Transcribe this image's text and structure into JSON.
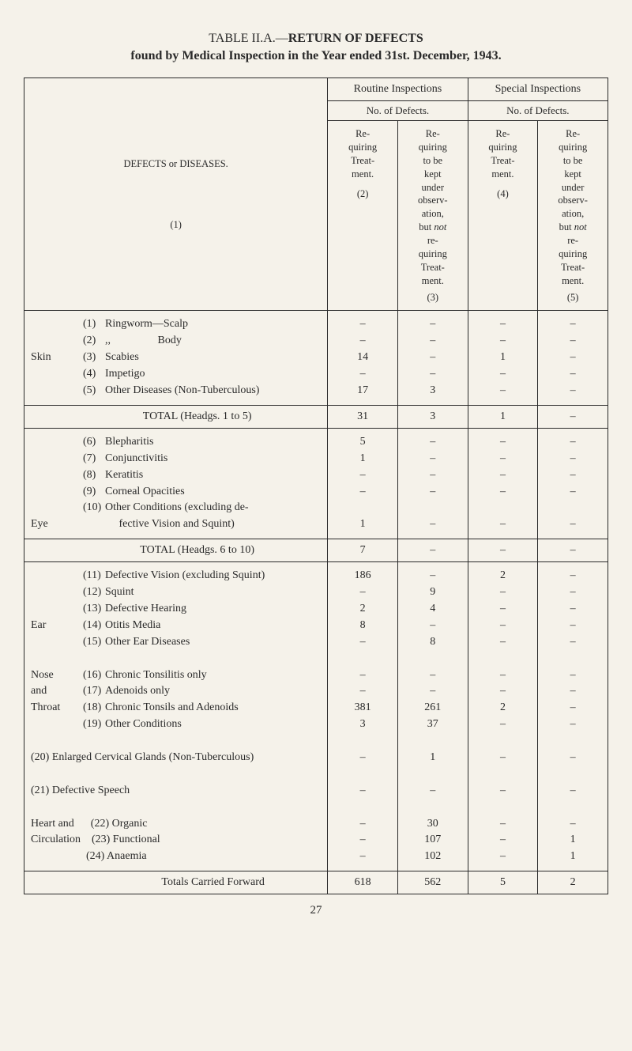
{
  "title": {
    "line1_prefix": "TABLE II.A.—",
    "line1_bold": "RETURN OF DEFECTS",
    "line2": "found by Medical Inspection in the Year ended 31st. December, 1943."
  },
  "headers": {
    "routine": "Routine Inspections",
    "special": "Special Inspections",
    "no_of_defects": "No. of Defects.",
    "desc_title": "DEFECTS or DISEASES.",
    "col1_num": "(1)",
    "col2": "Requiring Treatment.",
    "col2_num": "(2)",
    "col3": "Requiring to be kept under observation, but not requiring Treatment.",
    "col3_num": "(3)",
    "col4": "Requiring Treatment.",
    "col4_num": "(4)",
    "col5": "Requiring to be kept under observation, but not requiring Treatment.",
    "col5_num": "(5)"
  },
  "rows": [
    {
      "label": "",
      "num": "(1)",
      "name": "Ringworm—Scalp",
      "v": [
        "–",
        "–",
        "–",
        "–"
      ]
    },
    {
      "label": "",
      "num": "(2)",
      "name": ",,                 Body",
      "v": [
        "–",
        "–",
        "–",
        "–"
      ]
    },
    {
      "label": "Skin",
      "num": "(3)",
      "name": "Scabies",
      "v": [
        "14",
        "–",
        "1",
        "–"
      ]
    },
    {
      "label": "",
      "num": "(4)",
      "name": "Impetigo",
      "v": [
        "–",
        "–",
        "–",
        "–"
      ]
    },
    {
      "label": "",
      "num": "(5)",
      "name": "Other Diseases (Non-Tuberculous)",
      "v": [
        "17",
        "3",
        "–",
        "–"
      ]
    }
  ],
  "total1": {
    "label": "TOTAL (Headgs. 1 to 5)",
    "v": [
      "31",
      "3",
      "1",
      "–"
    ]
  },
  "rows2": [
    {
      "label": "",
      "num": "(6)",
      "name": "Blepharitis",
      "v": [
        "5",
        "–",
        "–",
        "–"
      ]
    },
    {
      "label": "",
      "num": "(7)",
      "name": "Conjunctivitis",
      "v": [
        "1",
        "–",
        "–",
        "–"
      ]
    },
    {
      "label": "",
      "num": "(8)",
      "name": "Keratitis",
      "v": [
        "–",
        "–",
        "–",
        "–"
      ]
    },
    {
      "label": "",
      "num": "(9)",
      "name": "Corneal Opacities",
      "v": [
        "–",
        "–",
        "–",
        "–"
      ]
    },
    {
      "label": "",
      "num": "(10)",
      "name": "Other Conditions (excluding de-",
      "v": [
        "",
        "",
        "",
        ""
      ]
    },
    {
      "label": "Eye",
      "num": "",
      "name": "     fective Vision and Squint)",
      "v": [
        "1",
        "–",
        "–",
        "–"
      ]
    }
  ],
  "total2": {
    "label": "TOTAL (Headgs. 6 to 10)",
    "v": [
      "7",
      "–",
      "–",
      "–"
    ]
  },
  "rows3": [
    {
      "label": "",
      "num": "(11)",
      "name": "Defective Vision (excluding Squint)",
      "v": [
        "186",
        "–",
        "2",
        "–"
      ]
    },
    {
      "label": "",
      "num": "(12)",
      "name": "Squint",
      "v": [
        "–",
        "9",
        "–",
        "–"
      ]
    },
    {
      "label": "",
      "num": "(13)",
      "name": "Defective Hearing",
      "v": [
        "2",
        "4",
        "–",
        "–"
      ]
    },
    {
      "label": "Ear",
      "num": "(14)",
      "name": "Otitis Media",
      "v": [
        "8",
        "–",
        "–",
        "–"
      ]
    },
    {
      "label": "",
      "num": "(15)",
      "name": "Other Ear Diseases",
      "v": [
        "–",
        "8",
        "–",
        "–"
      ]
    },
    {
      "label": "",
      "num": "",
      "name": "",
      "v": [
        "",
        "",
        "",
        ""
      ]
    },
    {
      "label": "Nose",
      "num": "(16)",
      "name": "Chronic Tonsilitis only",
      "v": [
        "–",
        "–",
        "–",
        "–"
      ]
    },
    {
      "label": "and",
      "num": "(17)",
      "name": "Adenoids only",
      "v": [
        "–",
        "–",
        "–",
        "–"
      ]
    },
    {
      "label": "Throat",
      "num": "(18)",
      "name": "Chronic Tonsils and Adenoids",
      "v": [
        "381",
        "261",
        "2",
        "–"
      ]
    },
    {
      "label": "",
      "num": "(19)",
      "name": "Other Conditions",
      "v": [
        "3",
        "37",
        "–",
        "–"
      ]
    },
    {
      "label": "",
      "num": "",
      "name": "",
      "v": [
        "",
        "",
        "",
        ""
      ]
    },
    {
      "full": "(20) Enlarged Cervical Glands (Non-Tuberculous)",
      "v": [
        "–",
        "1",
        "–",
        "–"
      ]
    },
    {
      "label": "",
      "num": "",
      "name": "",
      "v": [
        "",
        "",
        "",
        ""
      ]
    },
    {
      "full": "(21) Defective Speech",
      "v": [
        "–",
        "–",
        "–",
        "–"
      ]
    },
    {
      "label": "",
      "num": "",
      "name": "",
      "v": [
        "",
        "",
        "",
        ""
      ]
    },
    {
      "full": "Heart and      (22) Organic",
      "v": [
        "–",
        "30",
        "–",
        "–"
      ]
    },
    {
      "full": "Circulation    (23) Functional",
      "v": [
        "–",
        "107",
        "–",
        "1"
      ]
    },
    {
      "full": "                    (24) Anaemia",
      "v": [
        "–",
        "102",
        "–",
        "1"
      ]
    }
  ],
  "totals_carried": {
    "label": "Totals Carried Forward",
    "v": [
      "618",
      "562",
      "5",
      "2"
    ]
  },
  "page_number": "27"
}
